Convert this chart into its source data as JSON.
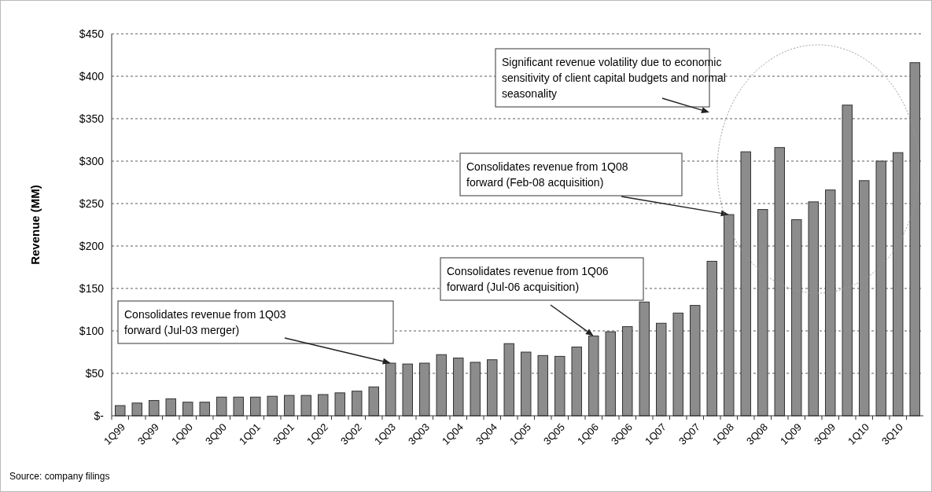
{
  "chart_data": {
    "type": "bar",
    "ylabel": "Revenue (MM)",
    "categories": [
      "1Q99",
      null,
      "3Q99",
      null,
      "1Q00",
      null,
      "3Q00",
      null,
      "1Q01",
      null,
      "3Q01",
      null,
      "1Q02",
      null,
      "3Q02",
      null,
      "1Q03",
      null,
      "3Q03",
      null,
      "1Q04",
      null,
      "3Q04",
      null,
      "1Q05",
      null,
      "3Q05",
      null,
      "1Q06",
      null,
      "3Q06",
      null,
      "1Q07",
      null,
      "3Q07",
      null,
      "1Q08",
      null,
      "3Q08",
      null,
      "1Q09",
      null,
      "3Q09",
      null,
      "1Q10",
      null,
      "3Q10",
      null
    ],
    "values": [
      12,
      15,
      18,
      20,
      16,
      16,
      22,
      22,
      22,
      23,
      24,
      24,
      25,
      27,
      29,
      34,
      62,
      61,
      62,
      72,
      68,
      63,
      66,
      85,
      75,
      71,
      70,
      81,
      94,
      99,
      105,
      134,
      109,
      121,
      130,
      182,
      237,
      311,
      243,
      316,
      231,
      252,
      266,
      366,
      277,
      300,
      310,
      416
    ],
    "color": "#8c8c8c",
    "ylim": [
      0,
      450
    ],
    "yticks": [
      {
        "value": 0,
        "label": "$-"
      },
      {
        "value": 50,
        "label": "$50"
      },
      {
        "value": 100,
        "label": "$100"
      },
      {
        "value": 150,
        "label": "$150"
      },
      {
        "value": 200,
        "label": "$200"
      },
      {
        "value": 250,
        "label": "$250"
      },
      {
        "value": 300,
        "label": "$300"
      },
      {
        "value": 350,
        "label": "$350"
      },
      {
        "value": 400,
        "label": "$400"
      },
      {
        "value": 450,
        "label": "$450"
      }
    ],
    "grid": "y",
    "annotations": [
      {
        "text": "Consolidates revenue from 1Q03 forward (Jul-03 merger)",
        "x": "1Q03",
        "y": 62
      },
      {
        "text": "Consolidates revenue from 1Q06 forward (Jul-06 acquisition)",
        "x": "1Q06",
        "y": 94
      },
      {
        "text": "Consolidates revenue from 1Q08 forward (Feb-08 acquisition)",
        "x": "1Q08",
        "y": 237
      },
      "Significant revenue volatility due to economic sensitivity of client capital budgets and normal seasonality",
      "Source: company filings"
    ]
  }
}
